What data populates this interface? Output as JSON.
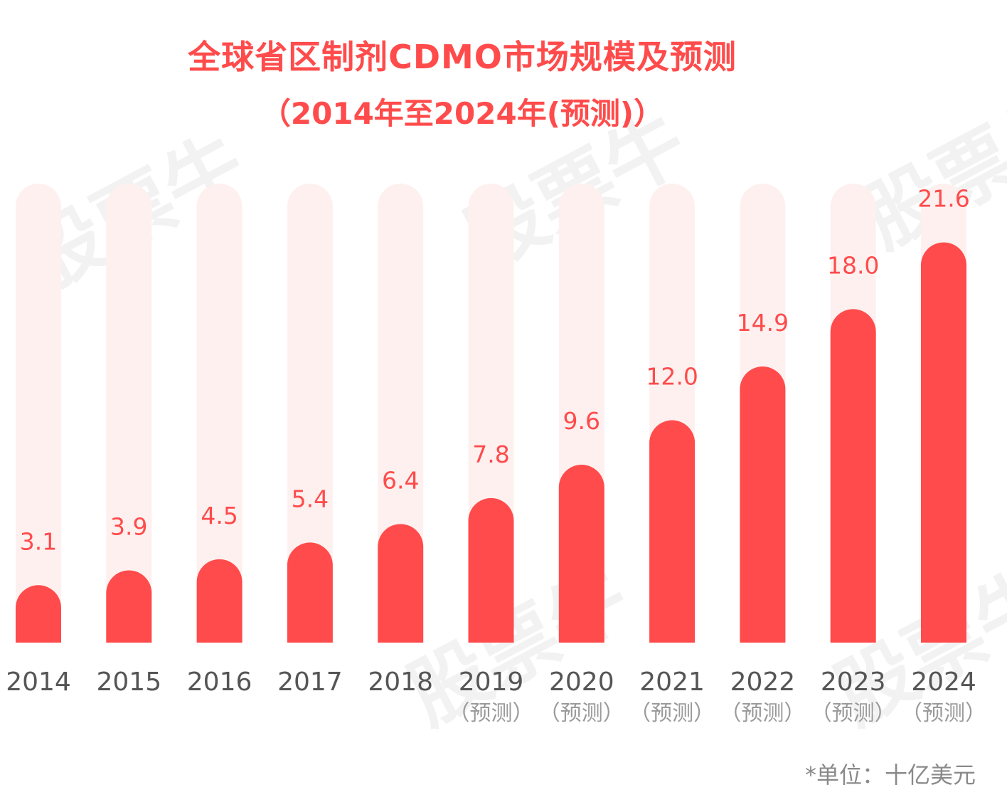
{
  "watermark_text": "股票牛",
  "unit_note": "*单位：十亿美元",
  "colors": {
    "bar": "#ff4b4b",
    "track": "#fff0f0",
    "label": "#ff4b4b"
  },
  "chart_data": {
    "type": "bar",
    "title": "全球省区制剂CDMO市场规模及预测",
    "subtitle": "（2014年至2024年(预测)）",
    "categories": [
      "2014",
      "2015",
      "2016",
      "2017",
      "2018",
      "2019",
      "2020",
      "2021",
      "2022",
      "2023",
      "2024"
    ],
    "category_notes": [
      "",
      "",
      "",
      "",
      "",
      "（预测）",
      "（预测）",
      "（预测）",
      "（预测）",
      "（预测）",
      "（预测）"
    ],
    "values": [
      3.1,
      3.9,
      4.5,
      5.4,
      6.4,
      7.8,
      9.6,
      12.0,
      14.9,
      18.0,
      21.6
    ],
    "value_labels": [
      "3.1",
      "3.9",
      "4.5",
      "5.4",
      "6.4",
      "7.8",
      "9.6",
      "12.0",
      "14.9",
      "18.0",
      "21.6"
    ],
    "ylim": [
      0,
      27
    ],
    "xlabel": "",
    "ylabel": "",
    "grid": false,
    "legend": "none"
  }
}
